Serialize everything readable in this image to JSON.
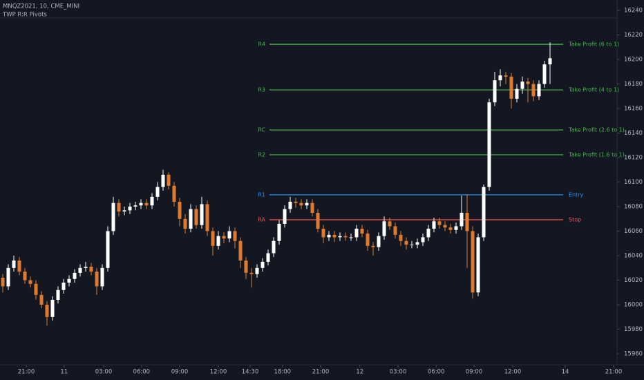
{
  "chart_data": {
    "type": "candlestick",
    "title": "MNQZ2021, 10, CME_MINI",
    "subtitle": "TWP R:R Pivots",
    "up_color": "#ffffff",
    "down_color": "#e07b2e",
    "ylim": [
      15951,
      16248.5
    ],
    "yticks": [
      15960,
      15980,
      16000,
      16020,
      16040,
      16060,
      16080,
      16100,
      16120,
      16140,
      16160,
      16180,
      16200,
      16220,
      16240
    ],
    "xlim": [
      -0.5,
      111.125
    ],
    "xticks": [
      {
        "value": 4.25,
        "label": "21:00"
      },
      {
        "value": 11.1,
        "label": "11"
      },
      {
        "value": 18.25,
        "label": "03:00"
      },
      {
        "value": 25.1,
        "label": "06:00"
      },
      {
        "value": 32,
        "label": "09:00"
      },
      {
        "value": 39,
        "label": "12:00"
      },
      {
        "value": 44.75,
        "label": "14:30"
      },
      {
        "value": 50.6,
        "label": "18:00"
      },
      {
        "value": 57.5,
        "label": "21:00"
      },
      {
        "value": 64.6,
        "label": "12"
      },
      {
        "value": 71.5,
        "label": "03:00"
      },
      {
        "value": 78.4,
        "label": "06:00"
      },
      {
        "value": 85.25,
        "label": "09:00"
      },
      {
        "value": 92.25,
        "label": "12:00"
      },
      {
        "value": 101.75,
        "label": "14"
      },
      {
        "value": 110.5,
        "label": "21:00"
      }
    ],
    "open": [
      16022,
      16015,
      16030,
      16036,
      16027,
      16020,
      16017,
      16008,
      16000,
      15990,
      16004,
      16012,
      16018,
      16021,
      16026,
      16030,
      16031,
      16027,
      16015,
      16030,
      16060,
      16083,
      16076,
      16077,
      16080,
      16081,
      16083,
      16081,
      16088,
      16096,
      16106,
      16097,
      16084,
      16070,
      16062,
      16078,
      16065,
      16082,
      16060,
      16048,
      16056,
      16054,
      16060,
      16052,
      16036,
      16026,
      16025,
      16030,
      16035,
      16042,
      16052,
      16066,
      16078,
      16084,
      16083,
      16081,
      16083,
      16075,
      16062,
      16055,
      16057,
      16055,
      16056,
      16055,
      16055,
      16062,
      16058,
      16048,
      16047,
      16056,
      16068,
      16064,
      16057,
      16052,
      16049,
      16049,
      16051,
      16055,
      16062,
      16068,
      16065,
      16063,
      16061,
      16064,
      16075,
      16060,
      16010,
      16055,
      16096,
      16165,
      16183,
      16187,
      16186,
      16168,
      16176,
      16182,
      16180,
      16170,
      16180,
      16196
    ],
    "high": [
      16025,
      16033,
      16040,
      16039,
      16030,
      16023,
      16020,
      16011,
      16003,
      16007,
      16015,
      16021,
      16024,
      16029,
      16033,
      16035,
      16034,
      16030,
      16033,
      16064,
      16088,
      16086,
      16080,
      16083,
      16084,
      16086,
      16086,
      16091,
      16100,
      16110,
      16108,
      16100,
      16087,
      16074,
      16082,
      16081,
      16088,
      16085,
      16063,
      16060,
      16059,
      16064,
      16063,
      16055,
      16039,
      16030,
      16033,
      16038,
      16045,
      16055,
      16069,
      16081,
      16088,
      16087,
      16086,
      16086,
      16086,
      16078,
      16065,
      16060,
      16060,
      16059,
      16059,
      16058,
      16065,
      16065,
      16061,
      16051,
      16059,
      16072,
      16071,
      16067,
      16060,
      16055,
      16052,
      16054,
      16058,
      16065,
      16071,
      16071,
      16068,
      16066,
      16067,
      16089,
      16090,
      16064,
      16058,
      16098,
      16168,
      16190,
      16192,
      16190,
      16189,
      16180,
      16186,
      16185,
      16183,
      16183,
      16199,
      16214
    ],
    "low": [
      16010,
      16012,
      16027,
      16024,
      16017,
      16014,
      16004,
      15997,
      15983,
      15987,
      16001,
      16009,
      16015,
      16018,
      16023,
      16027,
      16024,
      16008,
      16012,
      16027,
      16057,
      16072,
      16073,
      16074,
      16077,
      16078,
      16078,
      16078,
      16085,
      16093,
      16094,
      16080,
      16064,
      16058,
      16059,
      16062,
      16062,
      16056,
      16040,
      16045,
      16050,
      16051,
      16046,
      16030,
      16021,
      16014,
      16022,
      16027,
      16032,
      16039,
      16049,
      16063,
      16075,
      16079,
      16078,
      16078,
      16072,
      16059,
      16050,
      16052,
      16051,
      16052,
      16052,
      16052,
      16052,
      16055,
      16044,
      16040,
      16044,
      16053,
      16061,
      16054,
      16048,
      16045,
      16046,
      16046,
      16048,
      16052,
      16059,
      16062,
      16060,
      16058,
      16058,
      16061,
      16030,
      16005,
      16007,
      16052,
      16093,
      16162,
      16178,
      16180,
      16160,
      16165,
      16172,
      16165,
      16166,
      16167,
      16177,
      16180
    ],
    "close": [
      16015,
      16030,
      16036,
      16027,
      16020,
      16017,
      16008,
      16000,
      15990,
      16004,
      16012,
      16018,
      16021,
      16026,
      16030,
      16031,
      16027,
      16015,
      16030,
      16060,
      16083,
      16076,
      16077,
      16080,
      16081,
      16083,
      16081,
      16088,
      16096,
      16106,
      16097,
      16084,
      16070,
      16062,
      16078,
      16065,
      16082,
      16060,
      16048,
      16056,
      16054,
      16060,
      16052,
      16036,
      16026,
      16025,
      16030,
      16035,
      16042,
      16052,
      16066,
      16078,
      16084,
      16083,
      16081,
      16083,
      16075,
      16062,
      16055,
      16057,
      16055,
      16056,
      16055,
      16055,
      16062,
      16058,
      16048,
      16047,
      16056,
      16068,
      16064,
      16057,
      16052,
      16049,
      16049,
      16051,
      16055,
      16062,
      16068,
      16065,
      16063,
      16061,
      16064,
      16075,
      16060,
      16010,
      16055,
      16096,
      16165,
      16183,
      16187,
      16186,
      16168,
      16176,
      16182,
      16180,
      16170,
      16180,
      16196,
      16201
    ],
    "levels": [
      {
        "left_label": "R4",
        "right_label": "Take Profit (6 to 1)",
        "value": 16212.4,
        "color": "#4caf50"
      },
      {
        "left_label": "R3",
        "right_label": "Take Profit (4 to 1)",
        "value": 16175.2,
        "color": "#4caf50"
      },
      {
        "left_label": "RC",
        "right_label": "Take Profit (2.6 to 1)",
        "value": 16142.5,
        "color": "#4caf50"
      },
      {
        "left_label": "R2",
        "right_label": "Take Profit (1.6 to 1)",
        "value": 16122.3,
        "color": "#4caf50"
      },
      {
        "left_label": "R1",
        "right_label": "Entry",
        "value": 16089.6,
        "color": "#2196f3"
      },
      {
        "left_label": "RA",
        "right_label": "Stop",
        "value": 16069.3,
        "color": "#ef5350"
      }
    ]
  }
}
